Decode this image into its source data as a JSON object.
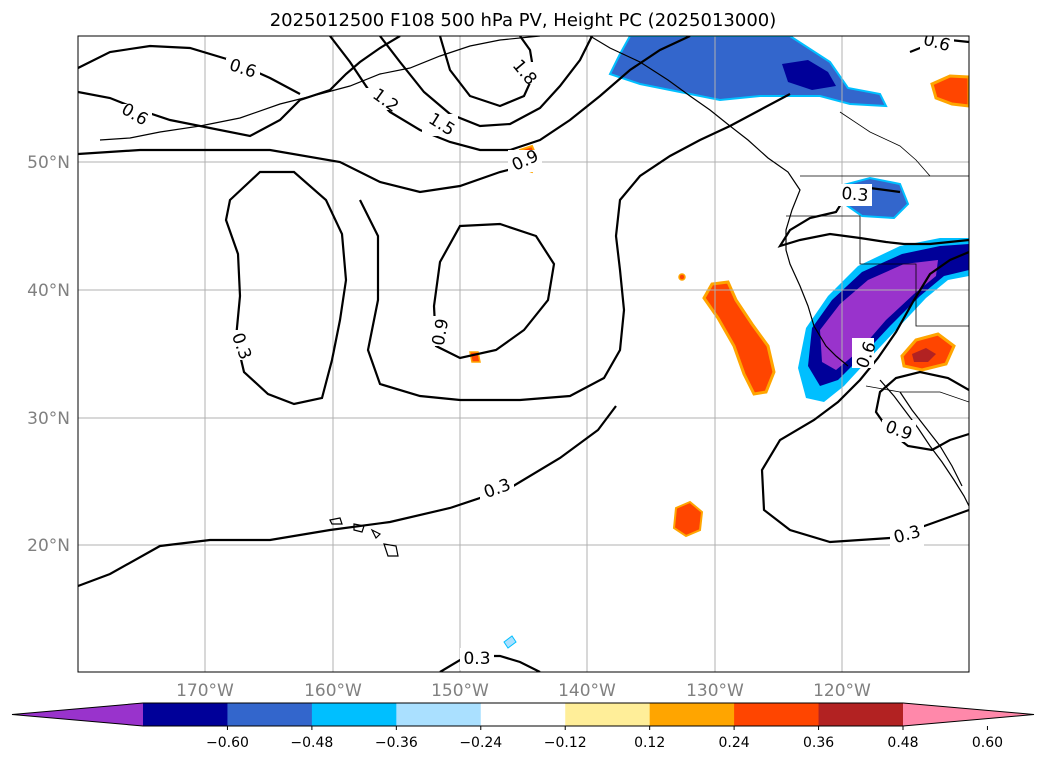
{
  "title": "2025012500 F108 500 hPa PV, Height PC (2025013000)",
  "lat_labels": [
    "50°N",
    "40°N",
    "30°N",
    "20°N"
  ],
  "lon_labels": [
    "170°W",
    "160°W",
    "150°W",
    "140°W",
    "130°W",
    "120°W"
  ],
  "colorbar": {
    "ticks": [
      "−0.60",
      "−0.48",
      "−0.36",
      "−0.24",
      "−0.12",
      "0.12",
      "0.24",
      "0.36",
      "0.48",
      "0.60"
    ],
    "colors": [
      "#9933cc",
      "#000099",
      "#3366cc",
      "#00bfff",
      "#aae0ff",
      "#ffffff",
      "#ffee99",
      "#ffa500",
      "#ff4500",
      "#b22222",
      "#ff88aa"
    ]
  },
  "contour_labels": {
    "c06_a": "0.6",
    "c06_b": "0.6",
    "c06_c": "0.6",
    "c06_d": "0.6",
    "c12": "1.2",
    "c15": "1.5",
    "c18": "1.8",
    "c09_a": "0.9",
    "c09_b": "0.9",
    "c09_c": "0.9",
    "c03_a": "0.3",
    "c03_b": "0.3",
    "c03_c": "0.3",
    "c03_d": "0.3",
    "c03_e": "0.3"
  }
}
